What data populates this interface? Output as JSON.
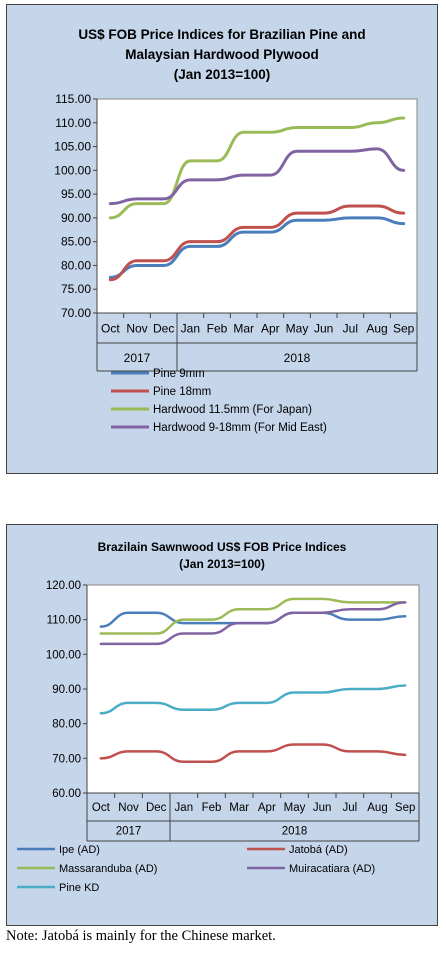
{
  "charts": [
    {
      "type": "line",
      "title_lines": [
        "US$ FOB Price Indices for Brazilian  Pine and",
        "Malaysian Hardwood Plywood",
        "(Jan 2013=100)"
      ],
      "months": [
        "Oct",
        "Nov",
        "Dec",
        "Jan",
        "Feb",
        "Mar",
        "Apr",
        "May",
        "Jun",
        "Jul",
        "Aug",
        "Sep"
      ],
      "years": [
        {
          "label": "2017",
          "span": 3
        },
        {
          "label": "2018",
          "span": 9
        }
      ],
      "yticks": [
        "115.00",
        "110.00",
        "105.00",
        "100.00",
        "95.00",
        "90.00",
        "85.00",
        "80.00",
        "75.00",
        "70.00"
      ],
      "ylim": [
        70,
        115
      ],
      "series": [
        {
          "name": "Pine 9mm",
          "color": "#4a7ebb",
          "values": [
            77.5,
            80,
            80,
            84,
            84,
            87,
            87,
            89.5,
            89.5,
            90,
            90,
            88.8
          ]
        },
        {
          "name": "Pine 18mm",
          "color": "#c0504d",
          "values": [
            77,
            81,
            81,
            85,
            85,
            88,
            88,
            91,
            91,
            92.5,
            92.5,
            91
          ]
        },
        {
          "name": "Hardwood 11.5mm (For Japan)",
          "color": "#9bbb59",
          "values": [
            90,
            93,
            93,
            102,
            102,
            108,
            108,
            109,
            109,
            109,
            110,
            111
          ]
        },
        {
          "name": "Hardwood 9-18mm (For Mid East)",
          "color": "#8064a2",
          "values": [
            93,
            94,
            94,
            98,
            98,
            99,
            99,
            104,
            104,
            104,
            104.5,
            100
          ]
        }
      ]
    },
    {
      "type": "line",
      "title_lines": [
        "Brazilain Sawnwood US$ FOB Price Indices",
        "(Jan 2013=100)"
      ],
      "months": [
        "Oct",
        "Nov",
        "Dec",
        "Jan",
        "Feb",
        "Mar",
        "Apr",
        "May",
        "Jun",
        "Jul",
        "Aug",
        "Sep"
      ],
      "years": [
        {
          "label": "2017",
          "span": 3
        },
        {
          "label": "2018",
          "span": 9
        }
      ],
      "yticks": [
        "120.00",
        "110.00",
        "100.00",
        "90.00",
        "80.00",
        "70.00",
        "60.00"
      ],
      "ylim": [
        60,
        120
      ],
      "series": [
        {
          "name": "Ipe (AD)",
          "color": "#4a7ebb",
          "values": [
            108,
            112,
            112,
            109,
            109,
            109,
            109,
            112,
            112,
            110,
            110,
            111
          ]
        },
        {
          "name": "Jatobá (AD)",
          "color": "#c0504d",
          "values": [
            70,
            72,
            72,
            69,
            69,
            72,
            72,
            74,
            74,
            72,
            72,
            71
          ]
        },
        {
          "name": "Massaranduba (AD)",
          "color": "#9bbb59",
          "values": [
            106,
            106,
            106,
            110,
            110,
            113,
            113,
            116,
            116,
            115,
            115,
            115
          ]
        },
        {
          "name": "Muiracatiara (AD)",
          "color": "#8064a2",
          "values": [
            103,
            103,
            103,
            106,
            106,
            109,
            109,
            112,
            112,
            113,
            113,
            115
          ]
        },
        {
          "name": "Pine KD",
          "color": "#4bacc6",
          "values": [
            83,
            86,
            86,
            84,
            84,
            86,
            86,
            89,
            89,
            90,
            90,
            91
          ]
        }
      ]
    }
  ],
  "note": "Note: Jatobá is mainly for the Chinese market."
}
